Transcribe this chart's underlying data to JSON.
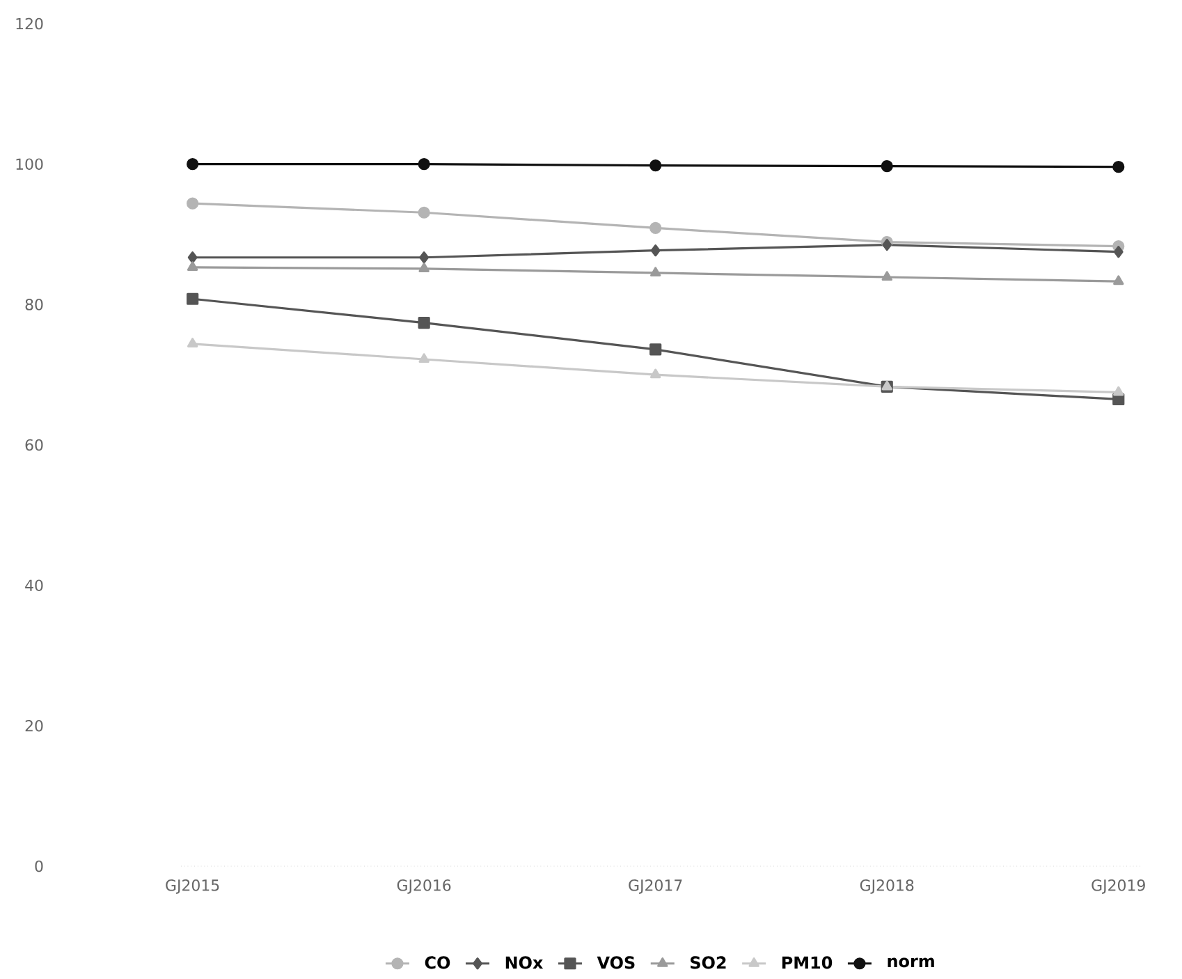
{
  "chart_data": {
    "type": "line",
    "categories": [
      "GJ2015",
      "GJ2016",
      "GJ2017",
      "GJ2018",
      "GJ2019"
    ],
    "ylim": [
      0,
      120
    ],
    "yticks": [
      0,
      20,
      40,
      60,
      80,
      100,
      120
    ],
    "grid": false,
    "legend": "bottom",
    "series": [
      {
        "name": "CO",
        "color": "#b4b4b4",
        "marker": "circle",
        "values": [
          94.4,
          93.1,
          90.9,
          88.9,
          88.3
        ]
      },
      {
        "name": "NOx",
        "color": "#555555",
        "marker": "diamond",
        "values": [
          86.7,
          86.7,
          87.7,
          88.5,
          87.5
        ]
      },
      {
        "name": "VOS",
        "color": "#555555",
        "marker": "square",
        "values": [
          80.8,
          77.4,
          73.6,
          68.3,
          66.5
        ]
      },
      {
        "name": "SO2",
        "color": "#9a9a9a",
        "marker": "triangle",
        "values": [
          85.3,
          85.1,
          84.5,
          83.9,
          83.3
        ]
      },
      {
        "name": "PM10",
        "color": "#c8c8c8",
        "marker": "triangle",
        "values": [
          74.4,
          72.2,
          70.0,
          68.3,
          67.5
        ]
      },
      {
        "name": "norm",
        "color": "#111111",
        "marker": "circle",
        "values": [
          100,
          100,
          99.8,
          99.7,
          99.6
        ]
      }
    ]
  }
}
